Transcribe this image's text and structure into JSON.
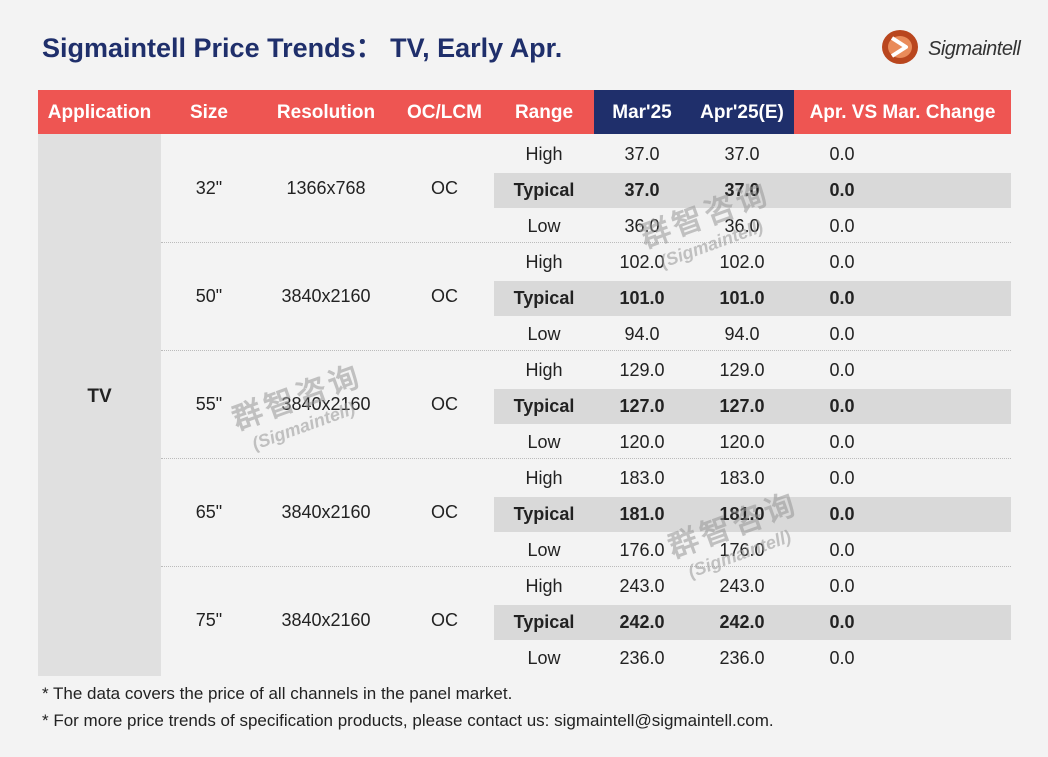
{
  "title": "Sigmaintell Price Trends： TV, Early Apr.",
  "logo": {
    "text": "Sigmaintell",
    "accent_color": "#b9461e"
  },
  "colors": {
    "header_red": "#ee5552",
    "header_navy": "#1f2f6b",
    "title_navy": "#1f2f6b",
    "typical_row": "#d9d9d9"
  },
  "headers": {
    "application": "Application",
    "size": "Size",
    "resolution": "Resolution",
    "oc_lcm": "OC/LCM",
    "range": "Range",
    "mar": "Mar'25",
    "apr": "Apr'25(E)",
    "change": "Apr. VS Mar. Change"
  },
  "application": "TV",
  "groups": [
    {
      "size": "32\"",
      "resolution": "1366x768",
      "type": "OC",
      "rows": [
        {
          "range": "High",
          "mar": "37.0",
          "apr": "37.0",
          "change": "0.0"
        },
        {
          "range": "Typical",
          "mar": "37.0",
          "apr": "37.0",
          "change": "0.0"
        },
        {
          "range": "Low",
          "mar": "36.0",
          "apr": "36.0",
          "change": "0.0"
        }
      ]
    },
    {
      "size": "50\"",
      "resolution": "3840x2160",
      "type": "OC",
      "rows": [
        {
          "range": "High",
          "mar": "102.0",
          "apr": "102.0",
          "change": "0.0"
        },
        {
          "range": "Typical",
          "mar": "101.0",
          "apr": "101.0",
          "change": "0.0"
        },
        {
          "range": "Low",
          "mar": "94.0",
          "apr": "94.0",
          "change": "0.0"
        }
      ]
    },
    {
      "size": "55\"",
      "resolution": "3840x2160",
      "type": "OC",
      "rows": [
        {
          "range": "High",
          "mar": "129.0",
          "apr": "129.0",
          "change": "0.0"
        },
        {
          "range": "Typical",
          "mar": "127.0",
          "apr": "127.0",
          "change": "0.0"
        },
        {
          "range": "Low",
          "mar": "120.0",
          "apr": "120.0",
          "change": "0.0"
        }
      ]
    },
    {
      "size": "65\"",
      "resolution": "3840x2160",
      "type": "OC",
      "rows": [
        {
          "range": "High",
          "mar": "183.0",
          "apr": "183.0",
          "change": "0.0"
        },
        {
          "range": "Typical",
          "mar": "181.0",
          "apr": "181.0",
          "change": "0.0"
        },
        {
          "range": "Low",
          "mar": "176.0",
          "apr": "176.0",
          "change": "0.0"
        }
      ]
    },
    {
      "size": "75\"",
      "resolution": "3840x2160",
      "type": "OC",
      "rows": [
        {
          "range": "High",
          "mar": "243.0",
          "apr": "243.0",
          "change": "0.0"
        },
        {
          "range": "Typical",
          "mar": "242.0",
          "apr": "242.0",
          "change": "0.0"
        },
        {
          "range": "Low",
          "mar": "236.0",
          "apr": "236.0",
          "change": "0.0"
        }
      ]
    }
  ],
  "notes": [
    "* The data covers the price of all channels in the panel market.",
    "* For more price trends of specification products, please contact us: sigmaintell@sigmaintell.com."
  ],
  "watermark": {
    "cn": "群智咨询",
    "en": "(Sigmaintell)"
  }
}
